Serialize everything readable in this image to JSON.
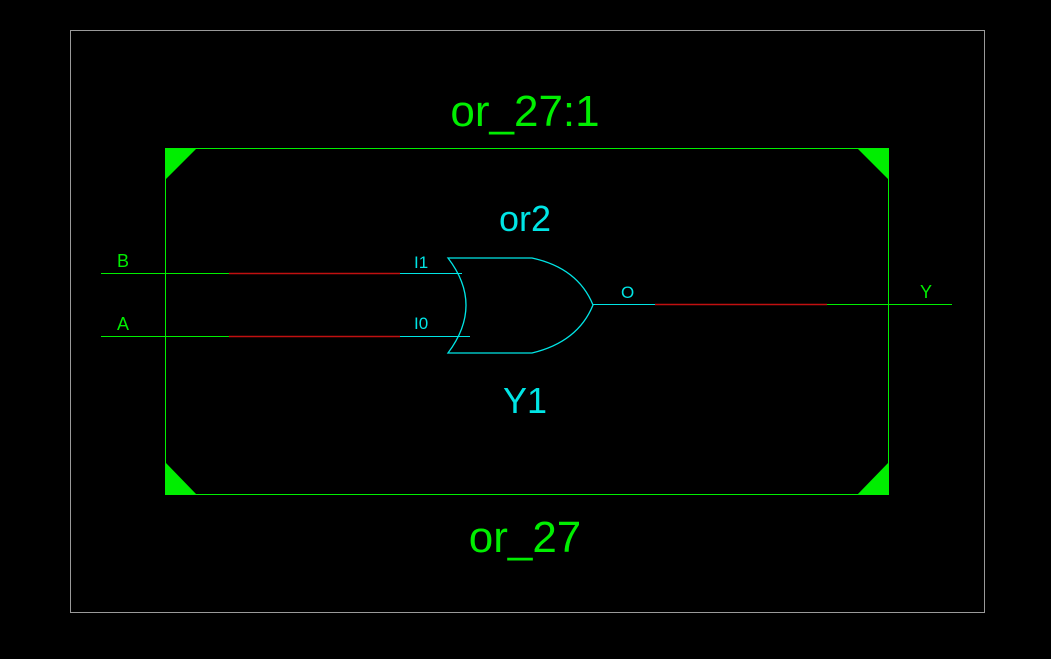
{
  "schematic": {
    "instance_title": "or_27:1",
    "module_name": "or_27",
    "gate": {
      "type_label": "or2",
      "instance_label": "Y1",
      "pins": {
        "in1": "I1",
        "in0": "I0",
        "out": "O"
      }
    },
    "ports": {
      "input_b": "B",
      "input_a": "A",
      "output_y": "Y"
    }
  },
  "colors": {
    "background": "#000000",
    "frame": "#9a9a9a",
    "module": "#00ee00",
    "gate": "#00e5e5",
    "net_highlight": "#c01010"
  }
}
